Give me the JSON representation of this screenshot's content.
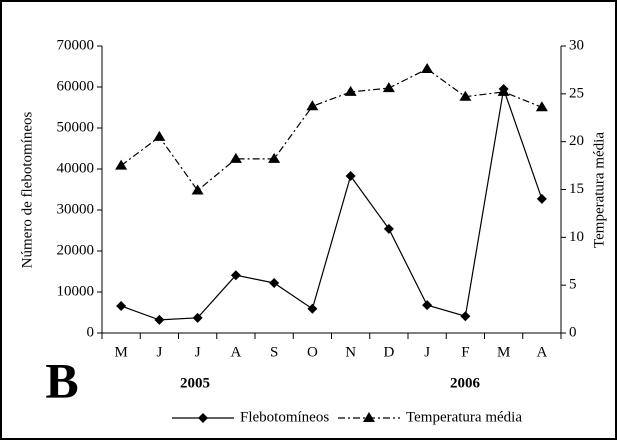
{
  "chart_data": {
    "type": "line",
    "panel_label": "B",
    "y_label": "Número de flebotomíneos",
    "y2_label": "Temperatura média",
    "categories": [
      "M",
      "J",
      "J",
      "A",
      "S",
      "O",
      "N",
      "D",
      "J",
      "F",
      "M",
      "A"
    ],
    "year_labels": [
      "2005",
      "2006"
    ],
    "series": [
      {
        "name": "Flebotomíneos",
        "color": "#000000",
        "marker": "diamond",
        "line_style": "solid",
        "values": [
          6600,
          3200,
          3700,
          14100,
          12200,
          5900,
          38300,
          25400,
          6800,
          4100,
          59500,
          32700
        ]
      },
      {
        "name": "Temperatura média",
        "color": "#000000",
        "marker": "triangle",
        "line_style": "dashdot",
        "axis": "y2",
        "values": [
          17.5,
          20.5,
          14.9,
          18.2,
          18.2,
          23.7,
          25.2,
          25.6,
          27.6,
          24.7,
          25.2,
          23.6
        ]
      }
    ],
    "ylim": [
      0,
      70000
    ],
    "yticks": [
      0,
      10000,
      20000,
      30000,
      40000,
      50000,
      60000,
      70000
    ],
    "y2lim": [
      0,
      30
    ],
    "y2ticks": [
      0,
      5,
      10,
      15,
      20,
      25,
      30
    ],
    "grid": false
  }
}
